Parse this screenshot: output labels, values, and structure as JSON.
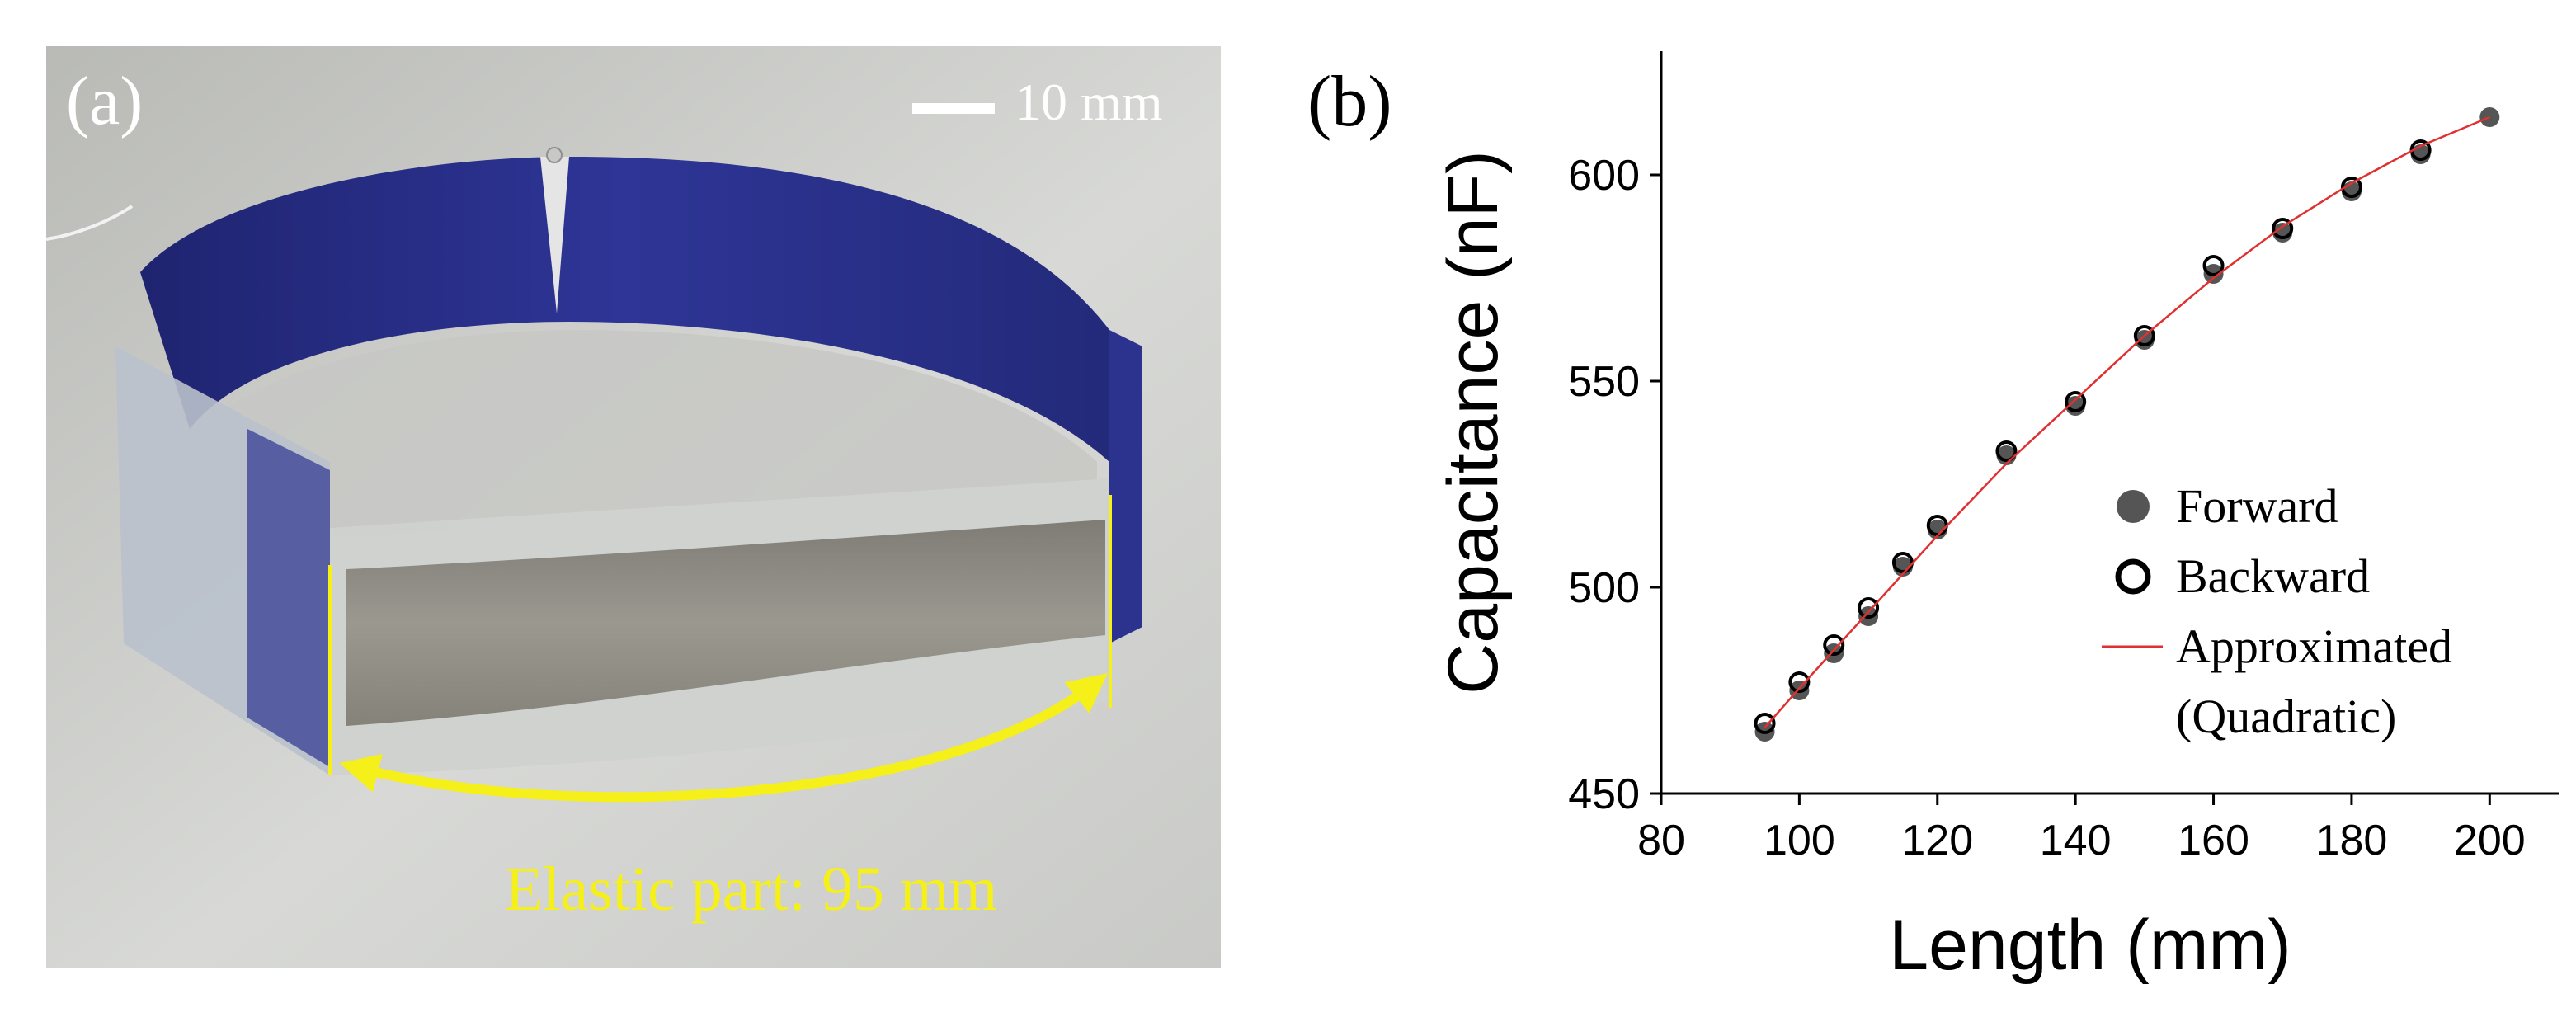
{
  "panel_a": {
    "label": "(a)",
    "scale_bar_label": "10 mm",
    "annotation": "Elastic part: 95 mm",
    "colors": {
      "strap": "#2a2f8a",
      "fabric": "#8f8d85",
      "annotation": "#f5ef1a"
    }
  },
  "panel_b": {
    "label": "(b)"
  },
  "chart_data": {
    "type": "scatter",
    "xlabel": "Length (mm)",
    "ylabel": "Capacitance (nF)",
    "xlim": [
      80,
      210
    ],
    "ylim": [
      450,
      630
    ],
    "xticks": [
      80,
      100,
      120,
      140,
      160,
      180,
      200
    ],
    "yticks": [
      450,
      500,
      550,
      600
    ],
    "grid": false,
    "legend_position": "center-right",
    "series": [
      {
        "name": "Forward",
        "marker": "filled-circle",
        "color": "#555555",
        "x": [
          95,
          100,
          105,
          110,
          115,
          120,
          130,
          140,
          150,
          160,
          170,
          180,
          190,
          200
        ],
        "y": [
          465,
          475,
          484,
          493,
          505,
          514,
          532,
          544,
          560,
          576,
          586,
          596,
          605,
          614
        ]
      },
      {
        "name": "Backward",
        "marker": "open-circle",
        "color": "#000000",
        "x": [
          95,
          100,
          105,
          110,
          115,
          120,
          130,
          140,
          150,
          160,
          170,
          180,
          190
        ],
        "y": [
          467,
          477,
          486,
          495,
          506,
          515,
          533,
          545,
          561,
          578,
          587,
          597,
          606
        ]
      },
      {
        "name": "Approximated",
        "name_line2": "(Quadratic)",
        "type": "line",
        "color": "#e03030",
        "x": [
          95,
          100,
          110,
          120,
          130,
          140,
          150,
          160,
          170,
          180,
          190,
          200
        ],
        "y": [
          466,
          475.5,
          494,
          512.5,
          530,
          545.5,
          561,
          575,
          587.5,
          598,
          607,
          614
        ]
      }
    ]
  }
}
